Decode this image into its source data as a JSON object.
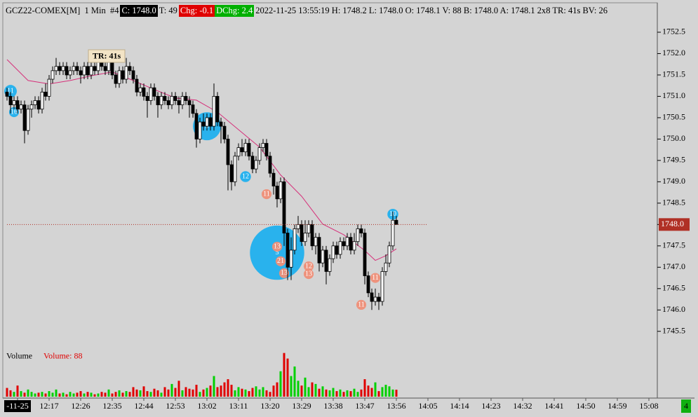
{
  "header": {
    "symbol": "GCZ22-COMEX[M]  1 Min  #4",
    "close": "C: 1748.0",
    "trades": "T: 49",
    "change": "Chg: -0.1",
    "day_change": "DChg: 2.4",
    "details": "2022-11-25 13:55:19 H: 1748.2 L: 1748.0 O: 1748.1 V: 88 B: 1748.0 A: 1748.1 2x8 TR: 41s BV: 26"
  },
  "chart_data": {
    "type": "candlestick",
    "x": [
      725,
      726,
      727,
      728,
      729,
      730,
      731,
      732,
      733,
      734,
      735,
      736,
      737,
      738,
      739,
      740,
      741,
      742,
      743,
      744,
      745,
      746,
      747,
      748,
      749,
      750,
      751,
      752,
      753,
      754,
      755,
      756,
      757,
      758,
      759,
      760,
      761,
      762,
      763,
      764,
      765,
      766,
      767,
      768,
      769,
      770,
      771,
      772,
      773,
      774,
      775,
      776,
      777,
      778,
      779,
      780,
      781,
      782,
      783,
      784,
      785,
      786,
      787,
      788,
      789,
      790,
      791,
      792,
      793,
      794,
      795,
      796,
      797,
      798,
      799,
      800,
      801,
      802,
      803,
      804,
      805,
      806,
      807,
      808,
      809,
      810,
      811,
      812,
      813,
      814,
      815,
      816,
      817,
      818,
      819,
      820,
      821,
      822,
      823,
      824,
      825,
      826,
      827,
      828,
      829,
      830,
      831,
      832,
      833,
      834,
      835,
      836
    ],
    "open": [
      1751.1,
      1751.0,
      1750.8,
      1750.9,
      1750.7,
      1750.8,
      1750.2,
      1750.7,
      1750.8,
      1750.9,
      1750.7,
      1751.1,
      1751.0,
      1751.4,
      1751.6,
      1751.7,
      1751.6,
      1751.7,
      1751.5,
      1751.6,
      1751.7,
      1751.6,
      1751.5,
      1751.7,
      1751.5,
      1751.7,
      1751.6,
      1751.8,
      1751.7,
      1751.6,
      1751.8,
      1751.5,
      1751.3,
      1751.6,
      1751.4,
      1751.7,
      1751.6,
      1751.4,
      1751.1,
      1751.2,
      1751.0,
      1750.9,
      1751.2,
      1751.0,
      1750.8,
      1751.0,
      1750.9,
      1750.8,
      1751.0,
      1750.9,
      1750.8,
      1751.0,
      1750.9,
      1750.8,
      1750.6,
      1750.0,
      1750.4,
      1750.3,
      1750.5,
      1750.3,
      1751.0,
      1750.4,
      1750.3,
      1750.0,
      1749.4,
      1749.0,
      1749.6,
      1749.8,
      1749.7,
      1749.9,
      1749.6,
      1749.3,
      1749.5,
      1749.8,
      1749.9,
      1749.6,
      1749.2,
      1748.9,
      1748.6,
      1749.0,
      1747.8,
      1747.0,
      1747.4,
      1747.9,
      1748.0,
      1747.6,
      1747.8,
      1748.0,
      1747.5,
      1747.7,
      1747.1,
      1747.4,
      1746.9,
      1747.2,
      1747.5,
      1747.3,
      1747.6,
      1747.5,
      1747.7,
      1747.4,
      1747.6,
      1747.9,
      1747.8,
      1746.8,
      1746.4,
      1746.2,
      1746.3,
      1746.2,
      1746.9,
      1747.1,
      1747.5,
      1748.1
    ],
    "high": [
      1751.2,
      1751.1,
      1751.0,
      1751.0,
      1750.9,
      1750.9,
      1750.8,
      1750.9,
      1751.0,
      1751.0,
      1751.2,
      1751.3,
      1751.5,
      1751.7,
      1751.9,
      1751.8,
      1751.8,
      1751.8,
      1751.7,
      1751.8,
      1751.8,
      1751.7,
      1751.8,
      1751.8,
      1751.8,
      1751.8,
      1751.9,
      1751.9,
      1751.8,
      1751.9,
      1751.9,
      1751.6,
      1751.7,
      1751.7,
      1751.9,
      1751.8,
      1751.7,
      1751.5,
      1751.3,
      1751.3,
      1751.1,
      1751.3,
      1751.3,
      1751.1,
      1751.1,
      1751.1,
      1751.0,
      1751.1,
      1751.1,
      1751.0,
      1751.1,
      1751.1,
      1751.0,
      1750.9,
      1750.7,
      1750.5,
      1750.6,
      1750.6,
      1750.6,
      1751.3,
      1751.1,
      1750.5,
      1750.4,
      1750.1,
      1749.5,
      1749.7,
      1749.9,
      1750.0,
      1750.0,
      1750.0,
      1749.7,
      1749.6,
      1749.9,
      1750.0,
      1750.0,
      1749.7,
      1749.3,
      1749.0,
      1749.1,
      1749.1,
      1747.9,
      1747.7,
      1748.0,
      1748.2,
      1748.1,
      1748.1,
      1748.1,
      1748.1,
      1747.8,
      1747.8,
      1747.5,
      1747.5,
      1747.3,
      1747.6,
      1747.6,
      1747.7,
      1747.7,
      1747.8,
      1747.8,
      1747.8,
      1748.0,
      1748.0,
      1747.9,
      1746.9,
      1746.5,
      1746.5,
      1746.4,
      1747.0,
      1747.3,
      1747.6,
      1748.3,
      1748.2
    ],
    "low": [
      1750.9,
      1750.6,
      1750.7,
      1750.6,
      1750.6,
      1749.9,
      1750.1,
      1750.5,
      1750.7,
      1750.6,
      1750.6,
      1750.9,
      1750.9,
      1751.3,
      1751.5,
      1751.5,
      1751.5,
      1751.4,
      1751.4,
      1751.5,
      1751.5,
      1751.3,
      1751.4,
      1751.4,
      1751.4,
      1751.5,
      1751.5,
      1751.6,
      1751.5,
      1751.5,
      1751.4,
      1751.2,
      1751.2,
      1751.3,
      1751.3,
      1751.5,
      1751.3,
      1751.0,
      1751.0,
      1750.9,
      1750.5,
      1750.8,
      1750.9,
      1750.5,
      1750.7,
      1750.8,
      1750.7,
      1750.7,
      1750.8,
      1750.6,
      1750.7,
      1750.8,
      1750.5,
      1750.5,
      1749.8,
      1749.9,
      1750.2,
      1750.2,
      1750.2,
      1750.2,
      1750.3,
      1749.9,
      1749.9,
      1748.8,
      1748.8,
      1748.9,
      1749.5,
      1749.6,
      1749.6,
      1749.5,
      1749.2,
      1749.2,
      1749.4,
      1749.7,
      1749.5,
      1749.1,
      1748.7,
      1748.4,
      1748.5,
      1747.5,
      1746.7,
      1746.7,
      1747.3,
      1747.8,
      1747.5,
      1747.5,
      1747.7,
      1747.4,
      1747.3,
      1746.9,
      1747.0,
      1746.6,
      1746.8,
      1747.1,
      1747.2,
      1747.2,
      1747.4,
      1747.4,
      1747.3,
      1747.3,
      1747.5,
      1747.7,
      1746.6,
      1746.3,
      1746.0,
      1746.1,
      1746.0,
      1746.1,
      1746.8,
      1747.0,
      1747.4,
      1748.0
    ],
    "close": [
      1751.0,
      1750.8,
      1750.9,
      1750.7,
      1750.8,
      1750.2,
      1750.7,
      1750.8,
      1750.9,
      1750.7,
      1751.1,
      1751.0,
      1751.4,
      1751.6,
      1751.7,
      1751.6,
      1751.7,
      1751.5,
      1751.6,
      1751.7,
      1751.6,
      1751.5,
      1751.7,
      1751.5,
      1751.7,
      1751.6,
      1751.8,
      1751.7,
      1751.6,
      1751.8,
      1751.5,
      1751.3,
      1751.6,
      1751.4,
      1751.7,
      1751.6,
      1751.4,
      1751.1,
      1751.2,
      1751.0,
      1750.9,
      1751.2,
      1751.0,
      1750.8,
      1751.0,
      1750.9,
      1750.8,
      1751.0,
      1750.9,
      1750.8,
      1751.0,
      1750.9,
      1750.8,
      1750.6,
      1750.0,
      1750.4,
      1750.3,
      1750.5,
      1750.3,
      1751.0,
      1750.4,
      1750.3,
      1750.0,
      1749.4,
      1749.0,
      1749.6,
      1749.8,
      1749.7,
      1749.9,
      1749.6,
      1749.3,
      1749.5,
      1749.8,
      1749.9,
      1749.6,
      1749.2,
      1748.9,
      1748.6,
      1749.0,
      1747.8,
      1747.0,
      1747.4,
      1747.9,
      1748.0,
      1747.6,
      1747.8,
      1748.0,
      1747.5,
      1747.7,
      1747.1,
      1747.4,
      1746.9,
      1747.2,
      1747.5,
      1747.3,
      1747.6,
      1747.5,
      1747.7,
      1747.4,
      1747.6,
      1747.9,
      1747.8,
      1746.8,
      1746.4,
      1746.2,
      1746.3,
      1746.2,
      1746.9,
      1747.1,
      1747.5,
      1748.1,
      1748.0
    ],
    "up_color": "#ffffff",
    "down_color": "#000000",
    "xlim": [
      724,
      910.4
    ],
    "xticks": [
      {
        "value": 728,
        "label": "-11-25"
      },
      {
        "value": 737,
        "label": "12:17"
      },
      {
        "value": 746,
        "label": "12:26"
      },
      {
        "value": 755,
        "label": "12:35"
      },
      {
        "value": 764,
        "label": "12:44"
      },
      {
        "value": 773,
        "label": "12:53"
      },
      {
        "value": 782,
        "label": "13:02"
      },
      {
        "value": 791,
        "label": "13:11"
      },
      {
        "value": 800,
        "label": "13:20"
      },
      {
        "value": 809,
        "label": "13:29"
      },
      {
        "value": 818,
        "label": "13:38"
      },
      {
        "value": 827,
        "label": "13:47"
      },
      {
        "value": 836,
        "label": "13:56"
      },
      {
        "value": 845,
        "label": "14:05"
      },
      {
        "value": 854,
        "label": "14:14"
      },
      {
        "value": 863,
        "label": "14:23"
      },
      {
        "value": 872,
        "label": "14:32"
      },
      {
        "value": 881,
        "label": "14:41"
      },
      {
        "value": 890,
        "label": "14:50"
      },
      {
        "value": 899,
        "label": "14:59"
      },
      {
        "value": 908,
        "label": "15:08"
      }
    ],
    "ylim": [
      1745.25,
      1753
    ],
    "yticks": [
      1745.5,
      {
        "value": 1746,
        "label": "1746.0"
      },
      1746.5,
      {
        "value": 1747,
        "label": "1747.0"
      },
      1747.5,
      {
        "value": 1748,
        "label": "1748.0"
      },
      1748.5,
      {
        "value": 1749,
        "label": "1749.0"
      },
      1749.5,
      {
        "value": 1750,
        "label": "1750.0"
      },
      1750.5,
      {
        "value": 1751,
        "label": "1751.0"
      },
      1751.5,
      {
        "value": 1752,
        "label": "1752.0"
      },
      1752.5
    ],
    "current_price": {
      "value": 1748,
      "label": "1748.0"
    },
    "current_price_color": "#b03025",
    "annotation": "TR: 41s",
    "moving_average": {
      "color": "#d6307a",
      "x": [
        725,
        731,
        737,
        743,
        749,
        755,
        761,
        767,
        773,
        779,
        785,
        791,
        797,
        803,
        809,
        815,
        821,
        827,
        830,
        833,
        836
      ],
      "values": [
        1751.86,
        1751.37,
        1751.29,
        1751.37,
        1751.48,
        1751.57,
        1751.37,
        1751.16,
        1750.96,
        1750.91,
        1750.63,
        1750.22,
        1749.81,
        1749.16,
        1748.66,
        1748.01,
        1747.76,
        1747.39,
        1747.16,
        1747.27,
        1747.43
      ]
    },
    "bubbles": {
      "x": [
        726,
        727,
        782,
        793,
        802,
        835,
        799,
        802,
        803,
        804,
        811,
        811,
        830,
        826
      ],
      "y": [
        1751.12,
        1750.63,
        1750.3,
        1749.12,
        1747.34,
        1748.24,
        1748.71,
        1747.48,
        1747.14,
        1746.86,
        1747.02,
        1746.84,
        1746.75,
        1746.12
      ],
      "sizes": [
        80,
        50,
        400,
        60,
        1500,
        60,
        50,
        50,
        50,
        50,
        50,
        50,
        50,
        50
      ],
      "labels": [
        "11",
        "16",
        "3",
        "12",
        "5",
        "10",
        "11",
        "13",
        "21",
        "13",
        "12",
        "13",
        "11",
        "11"
      ],
      "colors": [
        "#20b0ee",
        "#20b0ee",
        "#20b0ee",
        "#20b0ee",
        "#20b0ee",
        "#20b0ee",
        "#ef8f78",
        "#ef8f78",
        "#ef8f78",
        "#ef8f78",
        "#ef8f78",
        "#ef8f78",
        "#ef8f78",
        "#ef8f78"
      ]
    },
    "volume": {
      "title": "Volume",
      "label": "Volume: 88",
      "label_color": "#e00000",
      "values": [
        110,
        80,
        60,
        140,
        70,
        50,
        90,
        60,
        40,
        50,
        60,
        40,
        70,
        50,
        90,
        40,
        50,
        30,
        60,
        40,
        50,
        70,
        40,
        60,
        50,
        30,
        40,
        60,
        50,
        90,
        40,
        60,
        80,
        50,
        70,
        60,
        120,
        90,
        80,
        130,
        70,
        60,
        100,
        80,
        50,
        120,
        90,
        160,
        110,
        200,
        80,
        120,
        100,
        90,
        150,
        60,
        90,
        110,
        140,
        260,
        120,
        140,
        180,
        220,
        150,
        80,
        120,
        100,
        90,
        70,
        110,
        130,
        90,
        120,
        80,
        60,
        140,
        180,
        320,
        550,
        480,
        260,
        380,
        200,
        140,
        240,
        120,
        180,
        160,
        100,
        130,
        90,
        80,
        110,
        70,
        90,
        60,
        80,
        70,
        100,
        60,
        90,
        220,
        140,
        110,
        180,
        70,
        120,
        150,
        130,
        90,
        88
      ],
      "ylim": [
        0,
        600
      ],
      "up_color": "#00d000",
      "down_color": "#e00000"
    }
  },
  "status": "4"
}
